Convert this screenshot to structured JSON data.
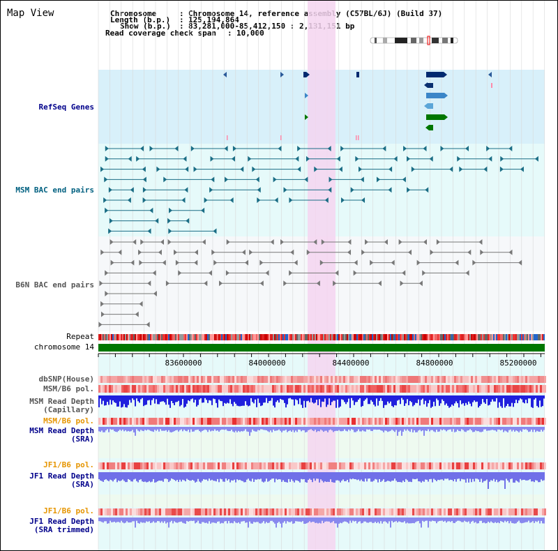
{
  "title": "Map View",
  "info": {
    "chromosome_label": "Chromosome",
    "chromosome_value": "Chromosome 14, reference assembly (C57BL/6J) (Build 37)",
    "length_label": "Length (b.p.)",
    "length_value": "125,194,864",
    "show_label": "Show (b.p.)",
    "show_value": "83,281,000-85,412,150 : 2,131,151 bp",
    "coverage_label": "Read coverage check span",
    "coverage_value": "10,000"
  },
  "tracks": {
    "refseq": "RefSeq Genes",
    "msm_bac": "MSM BAC end pairs",
    "b6n_bac": "B6N BAC end pairs",
    "repeat": "Repeat",
    "chromosome": "chromosome 14",
    "dbsnp": "dbSNP(House)",
    "msm_b6_pol": "MSM/B6 pol.",
    "msm_depth_cap_1": "MSM Read Depth",
    "msm_depth_cap_2": "(Capillary)",
    "msm_b6_pol_2": "MSM/B6 pol.",
    "msm_depth_sra_1": "MSM Read Depth",
    "msm_depth_sra_2": "(SRA)",
    "jf1_b6_pol": "JF1/B6 pol.",
    "jf1_depth_sra_1": "JF1 Read Depth",
    "jf1_depth_sra_2": "(SRA)",
    "jf1_b6_pol_2": "JF1/B6 pol.",
    "jf1_depth_trim_1": "JF1 Read Depth",
    "jf1_depth_trim_2": "(SRA trimmed)"
  },
  "axis": {
    "ticks": [
      "83600000",
      "84000000",
      "84400000",
      "84800000",
      "85200000"
    ]
  },
  "colors": {
    "label_blue": "#00008b",
    "label_teal": "#006080",
    "label_gray": "#555555",
    "label_orange": "#e69500",
    "refseq_bg": "#d8f0fa",
    "bac_bg": "#e6fafa",
    "highlight": "#f5d5f0",
    "depth_blue": "#2222dd",
    "chrom_green": "#007700"
  }
}
